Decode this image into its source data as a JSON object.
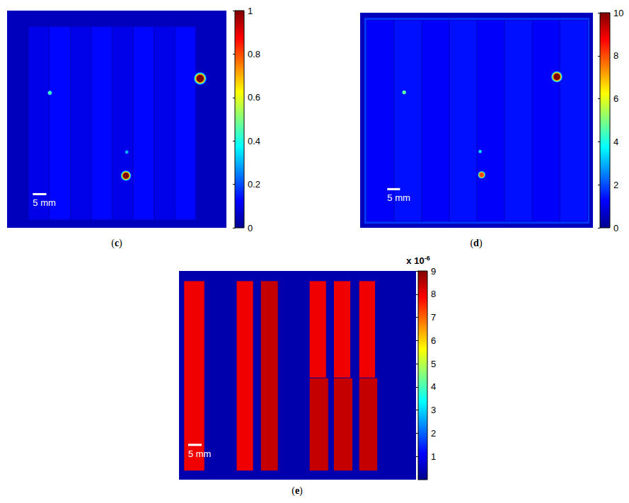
{
  "chart_data": [
    {
      "type": "heatmap",
      "label": "(c)",
      "tick_labels": false,
      "xlim": [
        0,
        81
      ],
      "ylim": [
        0,
        80
      ],
      "background": 0.05,
      "regions": [
        [
          7.9,
          5.8,
          15.6,
          77.1,
          0.1
        ],
        [
          15.6,
          5.8,
          23.4,
          77.1,
          0.13
        ],
        [
          23.4,
          5.8,
          31.1,
          77.1,
          0.1
        ],
        [
          31.1,
          5.8,
          38.8,
          77.1,
          0.13
        ],
        [
          38.8,
          5.8,
          46.5,
          77.1,
          0.1
        ],
        [
          46.5,
          5.8,
          54.3,
          77.1,
          0.13
        ],
        [
          54.3,
          5.8,
          62.0,
          77.1,
          0.1
        ],
        [
          62.0,
          5.8,
          69.7,
          77.1,
          0.13
        ]
      ],
      "spots": [
        {
          "x": 15.8,
          "y": 30.3,
          "diameter": 2.0,
          "value": 0.45
        },
        {
          "x": 44.2,
          "y": 52.1,
          "diameter": 1.8,
          "value": 0.3
        },
        {
          "x": 43.9,
          "y": 60.8,
          "diameter": 4.0,
          "value": 1
        },
        {
          "x": 71.3,
          "y": 25.0,
          "diameter": 4.8,
          "value": 1
        }
      ],
      "scale_bar": {
        "x": 9.5,
        "y": 67.6,
        "length": 5,
        "label": "5 mm"
      },
      "colorbar": {
        "range": [
          0,
          1
        ],
        "ticks": [
          0,
          0.2,
          0.4,
          0.6,
          0.8,
          1
        ]
      }
    },
    {
      "type": "heatmap",
      "label": "(d)",
      "tick_labels": false,
      "xlim": [
        0,
        91
      ],
      "ylim": [
        0,
        84
      ],
      "background": 0.5,
      "regions": [
        [
          1.5,
          1.9,
          89.7,
          82.5,
          1.8
        ],
        [
          2.5,
          2.9,
          13.3,
          81.5,
          1.2
        ],
        [
          13.3,
          2.9,
          24.1,
          81.5,
          1.4
        ],
        [
          24.1,
          2.9,
          34.9,
          81.5,
          1.2
        ],
        [
          34.9,
          2.9,
          45.7,
          81.5,
          1.4
        ],
        [
          45.7,
          2.9,
          56.5,
          81.5,
          1.2
        ],
        [
          56.5,
          2.9,
          67.3,
          81.5,
          1.4
        ],
        [
          67.3,
          2.9,
          78.1,
          81.5,
          1.2
        ],
        [
          78.1,
          2.9,
          88.9,
          81.5,
          1.4
        ]
      ],
      "spots": [
        {
          "x": 17.2,
          "y": 31.1,
          "diameter": 2.0,
          "value": 5
        },
        {
          "x": 46.9,
          "y": 54.2,
          "diameter": 1.8,
          "value": 3.5
        },
        {
          "x": 47.5,
          "y": 63.3,
          "diameter": 3.2,
          "value": 8
        },
        {
          "x": 76.9,
          "y": 25.0,
          "diameter": 4.6,
          "value": 10
        }
      ],
      "scale_bar": {
        "x": 10.6,
        "y": 68.9,
        "length": 5,
        "label": "5 mm"
      },
      "colorbar": {
        "range": [
          0,
          10
        ],
        "ticks": [
          0,
          2,
          4,
          6,
          8,
          10
        ]
      }
    },
    {
      "type": "heatmap",
      "label": "(e)",
      "tick_labels": false,
      "xlim": [
        0,
        88
      ],
      "ylim": [
        0,
        78
      ],
      "background": 0.3,
      "regions": [
        [
          1.8,
          3.7,
          9.5,
          74.7,
          8
        ],
        [
          21.3,
          3.7,
          27.6,
          74.7,
          8
        ],
        [
          30.3,
          3.7,
          36.8,
          74.7,
          8.4
        ],
        [
          48.4,
          3.7,
          54.7,
          40.0,
          8
        ],
        [
          48.4,
          40.0,
          55.5,
          74.7,
          8.4
        ],
        [
          57.4,
          3.7,
          63.7,
          40.0,
          8
        ],
        [
          57.4,
          40.0,
          64.5,
          74.7,
          8.4
        ],
        [
          66.8,
          3.7,
          72.9,
          40.0,
          8
        ],
        [
          66.8,
          40.0,
          73.7,
          74.7,
          8.4
        ]
      ],
      "spots": [],
      "scale_bar": {
        "x": 3.4,
        "y": 65.0,
        "length": 5,
        "label": "5 mm"
      },
      "colorbar": {
        "range": [
          0,
          9
        ],
        "ticks": [
          1,
          2,
          3,
          4,
          5,
          6,
          7,
          8,
          9
        ],
        "unit": {
          "base": "x 10",
          "exponent": "-6"
        }
      }
    }
  ]
}
